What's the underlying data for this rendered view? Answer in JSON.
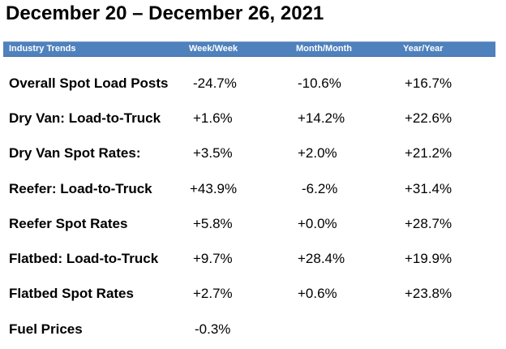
{
  "title": "December 20 – December 26, 2021",
  "colors": {
    "header_background": "#4f81bd",
    "header_text": "#ffffff"
  },
  "header": {
    "category": "Industry Trends",
    "week": "Week/Week",
    "month": "Month/Month",
    "year": "Year/Year"
  },
  "rows": [
    {
      "label": "Overall Spot Load Posts",
      "week": "-24.7%",
      "month": "-10.6%",
      "year": "+16.7%"
    },
    {
      "label": "Dry Van: Load-to-Truck",
      "week": "+1.6%",
      "month": "+14.2%",
      "year": "+22.6%"
    },
    {
      "label": "Dry Van Spot Rates:",
      "week": "+3.5%",
      "month": "+2.0%",
      "year": "+21.2%"
    },
    {
      "label": "Reefer: Load-to-Truck",
      "week": "+43.9%",
      "month": "-6.2%",
      "year": "+31.4%"
    },
    {
      "label": "Reefer Spot Rates",
      "week": "+5.8%",
      "month": "+0.0%",
      "year": "+28.7%"
    },
    {
      "label": "Flatbed: Load-to-Truck",
      "week": "+9.7%",
      "month": "+28.4%",
      "year": "+19.9%"
    },
    {
      "label": "Flatbed Spot Rates",
      "week": "+2.7%",
      "month": "+0.6%",
      "year": "+23.8%"
    },
    {
      "label": "Fuel Prices",
      "week": "-0.3%",
      "month": "",
      "year": ""
    }
  ]
}
